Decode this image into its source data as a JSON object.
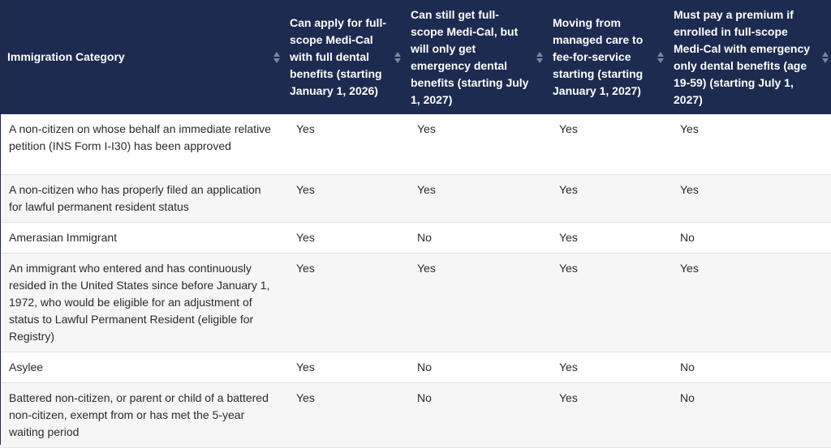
{
  "table": {
    "headers": [
      "Immigration Category",
      "Can apply for full-scope Medi-Cal with full dental benefits (starting January 1, 2026)",
      "Can still get full-scope Medi-Cal, but will only get emergency dental benefits (starting July 1, 2027)",
      "Moving from managed care to fee-for-service starting (starting January 1, 2027)",
      "Must pay a premium if enrolled in full-scope Medi-Cal with emergency only dental benefits (age 19-59) (starting July 1, 2027)"
    ],
    "rows": [
      {
        "category": "A non-citizen on whose behalf an immediate relative petition (INS Form I-I30) has been approved",
        "values": [
          "Yes",
          "Yes",
          "Yes",
          "Yes"
        ]
      },
      {
        "category": "A non-citizen who has properly filed an application for lawful permanent resident status",
        "values": [
          "Yes",
          "Yes",
          "Yes",
          "Yes"
        ]
      },
      {
        "category": "Amerasian Immigrant",
        "values": [
          "Yes",
          "No",
          "Yes",
          "No"
        ]
      },
      {
        "category": "An immigrant who entered and has continuously resided in the United States since before January 1, 1972, who would be eligible for an adjustment of status to Lawful Permanent Resident (eligible for Registry)",
        "values": [
          "Yes",
          "Yes",
          "Yes",
          "Yes"
        ]
      },
      {
        "category": "Asylee",
        "values": [
          "Yes",
          "No",
          "Yes",
          "No"
        ]
      },
      {
        "category": "Battered non-citizen, or parent or child of a battered non-citizen, exempt from or has met the 5-year waiting period",
        "values": [
          "Yes",
          "No",
          "Yes",
          "No"
        ]
      }
    ]
  },
  "colors": {
    "header_bg": "#1c2b4f",
    "header_text": "#ffffff",
    "row_alt_bg": "#f6f6f6",
    "row_bg": "#ffffff"
  }
}
